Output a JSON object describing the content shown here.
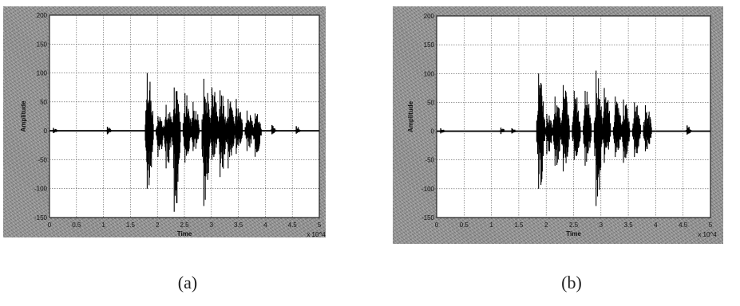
{
  "chart_data": [
    {
      "type": "line",
      "caption": "(a)",
      "xlabel": "Time",
      "ylabel": "Amplitude",
      "x_multiplier": "x 10^4",
      "xlim": [
        0,
        5
      ],
      "ylim": [
        -150,
        200
      ],
      "x_ticks": [
        "0",
        "0.5",
        "1",
        "1.5",
        "2",
        "2.5",
        "3",
        "3.5",
        "4",
        "4.5",
        "5"
      ],
      "y_ticks": [
        "200",
        "150",
        "100",
        "50",
        "0",
        "-50",
        "-100",
        "-150"
      ],
      "grid": true,
      "bursts": [
        {
          "x": 0.1,
          "max": 5,
          "min": -4
        },
        {
          "x": 1.1,
          "max": 7,
          "min": -6
        },
        {
          "x": 1.85,
          "max": 100,
          "min": -100
        },
        {
          "x": 2.05,
          "max": 25,
          "min": -45
        },
        {
          "x": 2.2,
          "max": 45,
          "min": -65
        },
        {
          "x": 2.35,
          "max": 75,
          "min": -140
        },
        {
          "x": 2.55,
          "max": 65,
          "min": -55
        },
        {
          "x": 2.7,
          "max": 50,
          "min": -35
        },
        {
          "x": 2.9,
          "max": 90,
          "min": -130
        },
        {
          "x": 3.05,
          "max": 75,
          "min": -50
        },
        {
          "x": 3.2,
          "max": 70,
          "min": -80
        },
        {
          "x": 3.35,
          "max": 55,
          "min": -65
        },
        {
          "x": 3.5,
          "max": 55,
          "min": -40
        },
        {
          "x": 3.7,
          "max": 35,
          "min": -35
        },
        {
          "x": 3.85,
          "max": 30,
          "min": -45
        },
        {
          "x": 4.15,
          "max": 10,
          "min": -6
        },
        {
          "x": 4.6,
          "max": 8,
          "min": -5
        }
      ]
    },
    {
      "type": "line",
      "caption": "(b)",
      "xlabel": "Time",
      "ylabel": "Amplitude",
      "x_multiplier": "x 10^4",
      "xlim": [
        0,
        5
      ],
      "ylim": [
        -150,
        200
      ],
      "x_ticks": [
        "0",
        "0.5",
        "1",
        "1.5",
        "2",
        "2.5",
        "3",
        "3.5",
        "4",
        "4.5",
        "5"
      ],
      "y_ticks": [
        "200",
        "150",
        "100",
        "50",
        "0",
        "-50",
        "-100",
        "-150"
      ],
      "grid": true,
      "bursts": [
        {
          "x": 0.1,
          "max": 5,
          "min": -4
        },
        {
          "x": 1.2,
          "max": 6,
          "min": -5
        },
        {
          "x": 1.4,
          "max": 5,
          "min": -4
        },
        {
          "x": 1.9,
          "max": 100,
          "min": -100
        },
        {
          "x": 2.05,
          "max": 30,
          "min": -40
        },
        {
          "x": 2.2,
          "max": 60,
          "min": -60
        },
        {
          "x": 2.35,
          "max": 80,
          "min": -70
        },
        {
          "x": 2.55,
          "max": 70,
          "min": -50
        },
        {
          "x": 2.75,
          "max": 70,
          "min": -60
        },
        {
          "x": 2.95,
          "max": 105,
          "min": -130
        },
        {
          "x": 3.1,
          "max": 75,
          "min": -55
        },
        {
          "x": 3.3,
          "max": 60,
          "min": -45
        },
        {
          "x": 3.45,
          "max": 55,
          "min": -55
        },
        {
          "x": 3.65,
          "max": 50,
          "min": -45
        },
        {
          "x": 3.85,
          "max": 45,
          "min": -35
        },
        {
          "x": 4.6,
          "max": 10,
          "min": -6
        }
      ]
    }
  ]
}
